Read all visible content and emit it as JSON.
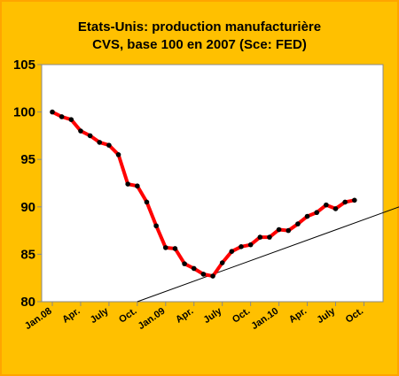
{
  "chart_data": {
    "type": "line",
    "title": "Etats-Unis: production manufacturière",
    "subtitle": "CVS, base 100 en 2007 (Sce: FED)",
    "colors": {
      "background": "#FFC000",
      "plot_area": "#FFFFFF",
      "series_line": "#FF0000",
      "markers": "#000000",
      "trend_line": "#000000",
      "border": "#FFA500"
    },
    "ylim": [
      80,
      105
    ],
    "yticks": [
      80,
      85,
      90,
      95,
      100,
      105
    ],
    "grid": false,
    "legend": "none",
    "x_tick_labels": [
      "Jan.08",
      "Apr.",
      "July",
      "Oct.",
      "Jan.09",
      "Apr.",
      "July",
      "Oct.",
      "Jan.10",
      "Apr.",
      "July",
      "Oct."
    ],
    "series": [
      {
        "values": [
          100.0,
          99.5,
          99.2,
          98.0,
          97.5,
          96.8,
          96.5,
          95.5,
          92.4,
          92.2,
          90.5,
          88.0,
          85.7,
          85.6,
          84.0,
          83.5,
          82.9,
          82.7,
          84.1,
          85.3,
          85.8,
          86.0,
          86.8,
          86.8,
          87.6,
          87.5,
          88.2,
          89.0,
          89.4,
          90.2,
          89.8,
          90.5,
          90.7
        ]
      }
    ],
    "trend_line": {
      "from": [
        9,
        80.0
      ],
      "to": [
        44.5,
        92.8
      ]
    }
  }
}
